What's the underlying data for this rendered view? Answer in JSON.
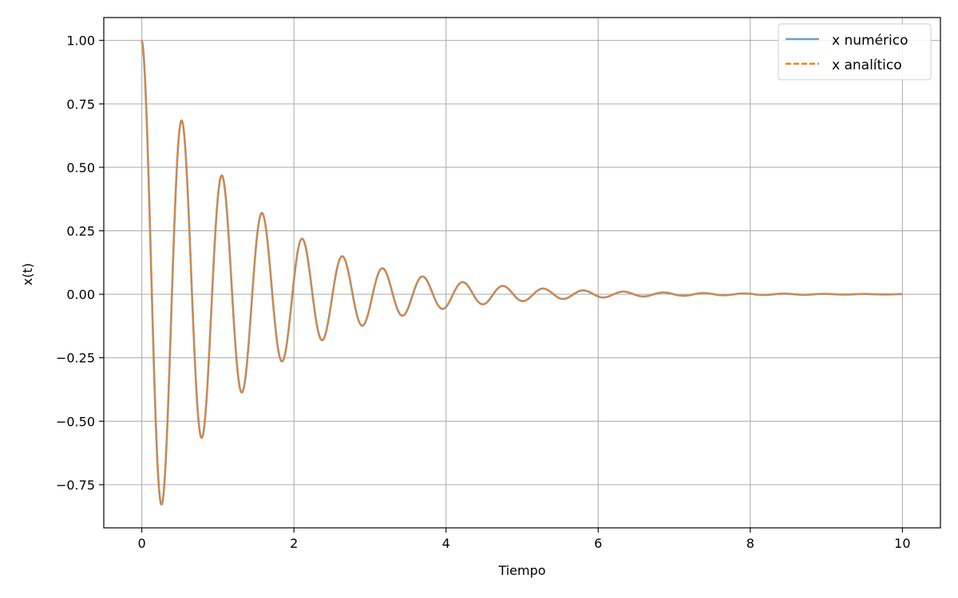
{
  "chart_data": {
    "type": "line",
    "title": "",
    "xlabel": "Tiempo",
    "ylabel": "x(t)",
    "xlim": [
      -0.5,
      10.5
    ],
    "ylim": [
      -0.92,
      1.09
    ],
    "xticks": [
      0,
      2,
      4,
      6,
      8,
      10
    ],
    "xtick_labels": [
      "0",
      "2",
      "4",
      "6",
      "8",
      "10"
    ],
    "yticks": [
      -0.75,
      -0.5,
      -0.25,
      0.0,
      0.25,
      0.5,
      0.75,
      1.0
    ],
    "ytick_labels": [
      "−0.75",
      "−0.50",
      "−0.25",
      "0.00",
      "0.25",
      "0.50",
      "0.75",
      "1.00"
    ],
    "grid": true,
    "legend_position": "top-right",
    "model": {
      "x0": 1.0,
      "decay": 0.72,
      "omega": 11.9,
      "t_start": 0,
      "t_end": 10,
      "samples": 1200
    },
    "peaks": [
      {
        "t": 0.0,
        "x": 1.0
      },
      {
        "t": 0.27,
        "x": -0.83
      },
      {
        "t": 0.53,
        "x": 0.69
      },
      {
        "t": 0.79,
        "x": -0.57
      },
      {
        "t": 1.06,
        "x": 0.47
      },
      {
        "t": 1.32,
        "x": -0.39
      },
      {
        "t": 1.58,
        "x": 0.32
      },
      {
        "t": 1.85,
        "x": -0.26
      },
      {
        "t": 2.11,
        "x": 0.22
      },
      {
        "t": 2.37,
        "x": -0.18
      },
      {
        "t": 2.64,
        "x": 0.15
      },
      {
        "t": 2.9,
        "x": -0.12
      },
      {
        "t": 3.16,
        "x": 0.1
      },
      {
        "t": 3.43,
        "x": -0.08
      },
      {
        "t": 3.69,
        "x": 0.07
      },
      {
        "t": 3.96,
        "x": -0.06
      },
      {
        "t": 4.22,
        "x": 0.05
      },
      {
        "t": 4.48,
        "x": -0.04
      },
      {
        "t": 4.75,
        "x": 0.03
      },
      {
        "t": 5.01,
        "x": -0.03
      },
      {
        "t": 5.28,
        "x": 0.02
      },
      {
        "t": 5.54,
        "x": -0.02
      },
      {
        "t": 5.8,
        "x": 0.015
      },
      {
        "t": 6.07,
        "x": -0.012
      },
      {
        "t": 6.33,
        "x": 0.01
      }
    ],
    "series": [
      {
        "name": "x numérico",
        "color": "#6a9fcf",
        "style": "solid"
      },
      {
        "name": "x analítico",
        "color": "#ff7f0e",
        "style": "dashed"
      }
    ]
  }
}
